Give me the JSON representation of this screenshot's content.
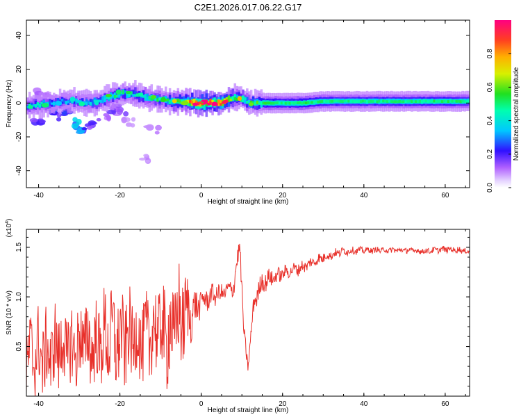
{
  "title": "C2E1.2026.017.06.22.G17",
  "chart_data": [
    {
      "type": "heatmap",
      "name": "spectrogram",
      "xlabel": "Height of straight line (km)",
      "ylabel": "Frequency (Hz)",
      "xlim": [
        -43,
        66
      ],
      "ylim": [
        -50,
        49
      ],
      "xticks": [
        -40,
        -20,
        0,
        20,
        40,
        60
      ],
      "xtick_labels": [
        "-40",
        "-20",
        "0",
        "20",
        "40",
        "60"
      ],
      "yticks": [
        -40,
        -20,
        0,
        20,
        40
      ],
      "ytick_labels": [
        "-40",
        "-20",
        "0",
        "20",
        "40"
      ],
      "colorbar": {
        "label": "Normalized spectral amplitude",
        "range": [
          0,
          1
        ],
        "ticks": [
          0.0,
          0.2,
          0.4,
          0.6,
          0.8
        ],
        "tick_labels": [
          "0.0",
          "0.2",
          "0.4",
          "0.6",
          "0.8"
        ]
      },
      "ridge": [
        [
          -43,
          -2,
          0.35
        ],
        [
          -40,
          -1,
          0.4
        ],
        [
          -37,
          0,
          0.35
        ],
        [
          -34,
          1,
          0.3
        ],
        [
          -31,
          1,
          0.35
        ],
        [
          -28,
          0,
          0.35
        ],
        [
          -25,
          1,
          0.4
        ],
        [
          -22,
          4,
          0.45
        ],
        [
          -19,
          6,
          0.45
        ],
        [
          -16,
          5,
          0.4
        ],
        [
          -13,
          3,
          0.45
        ],
        [
          -10,
          2,
          0.45
        ],
        [
          -7,
          1,
          0.55
        ],
        [
          -4,
          1,
          0.6
        ],
        [
          -1,
          0,
          0.95
        ],
        [
          2,
          0,
          0.98
        ],
        [
          5,
          0,
          0.95
        ],
        [
          8,
          3,
          0.6
        ],
        [
          10,
          3,
          0.55
        ],
        [
          12,
          0,
          0.5
        ],
        [
          15,
          0,
          0.55
        ],
        [
          20,
          0,
          0.5
        ],
        [
          25,
          0,
          0.55
        ],
        [
          30,
          1,
          0.5
        ],
        [
          40,
          1,
          0.5
        ],
        [
          50,
          1,
          0.5
        ],
        [
          60,
          1,
          0.52
        ],
        [
          66,
          1,
          0.5
        ]
      ],
      "scatter_blobs": [
        [
          -40,
          -10,
          0.2
        ],
        [
          -36,
          -8,
          0.25
        ],
        [
          -33,
          -5,
          0.3
        ],
        [
          -31,
          -12,
          0.35
        ],
        [
          -29,
          -17,
          0.3
        ],
        [
          -27,
          -14,
          0.2
        ],
        [
          -24,
          -8,
          0.15
        ],
        [
          -20,
          -5,
          0.15
        ],
        [
          -18,
          -12,
          0.1
        ],
        [
          -12,
          -16,
          0.1
        ],
        [
          -14,
          -33,
          0.1
        ],
        [
          -39,
          5,
          0.15
        ],
        [
          -35,
          -2,
          0.3
        ],
        [
          -22,
          -3,
          0.2
        ]
      ]
    },
    {
      "type": "line",
      "name": "snr",
      "xlabel": "Height of straight line (km)",
      "ylabel": "SNR (10 * v/v)",
      "scale_label": "(x10",
      "scale_exponent": "4",
      "scale_close": ")",
      "xlim": [
        -43,
        66
      ],
      "ylim": [
        0,
        1.68
      ],
      "xticks": [
        -40,
        -20,
        0,
        20,
        40,
        60
      ],
      "xtick_labels": [
        "-40",
        "-20",
        "0",
        "20",
        "40",
        "60"
      ],
      "yticks": [
        0.5,
        1.0,
        1.5
      ],
      "ytick_labels": [
        "0.5",
        "1.0",
        "1.5"
      ],
      "color": "#e8302a",
      "series": [
        {
          "name": "SNR",
          "x": [
            -43,
            -41,
            -38,
            -35,
            -32,
            -29,
            -26,
            -23,
            -20,
            -17,
            -14,
            -11,
            -8,
            -5,
            -2,
            0,
            3,
            6,
            8,
            9.5,
            10.5,
            11.5,
            13,
            15,
            18,
            21,
            25,
            30,
            35,
            40,
            45,
            50,
            55,
            60,
            64,
            66
          ],
          "y": [
            0.35,
            0.45,
            0.4,
            0.5,
            0.45,
            0.55,
            0.5,
            0.6,
            0.55,
            0.6,
            0.55,
            0.7,
            0.6,
            0.8,
            0.85,
            0.95,
            1.02,
            1.05,
            1.1,
            1.55,
            0.6,
            0.3,
            0.95,
            1.15,
            1.2,
            1.25,
            1.3,
            1.4,
            1.46,
            1.47,
            1.47,
            1.47,
            1.46,
            1.48,
            1.47,
            1.45
          ],
          "noise": [
            0.35,
            0.4,
            0.4,
            0.4,
            0.4,
            0.4,
            0.4,
            0.45,
            0.45,
            0.4,
            0.4,
            0.45,
            0.5,
            0.5,
            0.2,
            0.12,
            0.1,
            0.08,
            0.1,
            0.1,
            0.1,
            0.05,
            0.1,
            0.1,
            0.08,
            0.06,
            0.06,
            0.05,
            0.04,
            0.03,
            0.03,
            0.03,
            0.03,
            0.03,
            0.03,
            0.03
          ]
        }
      ]
    }
  ]
}
